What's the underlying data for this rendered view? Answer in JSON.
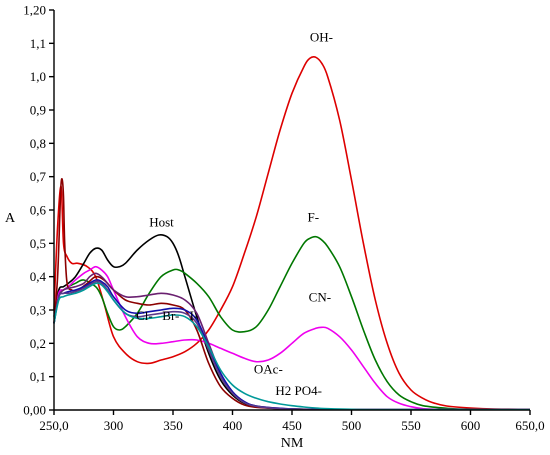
{
  "chart_data": {
    "type": "line",
    "title": "",
    "xlabel": "NM",
    "ylabel": "A",
    "xlim": [
      250,
      650
    ],
    "ylim": [
      0,
      1.2
    ],
    "grid": false,
    "x_tick_labels": [
      "250,0",
      "300",
      "350",
      "400",
      "450",
      "500",
      "550",
      "600",
      "650,0"
    ],
    "x_tick_values": [
      250,
      300,
      350,
      400,
      450,
      500,
      550,
      600,
      650
    ],
    "y_tick_labels": [
      "0,00",
      "0,1",
      "0,2",
      "0,3",
      "0,4",
      "0,5",
      "0,6",
      "0,7",
      "0,8",
      "0,9",
      "1,0",
      "1,1",
      "1,20"
    ],
    "y_tick_values": [
      0,
      0.1,
      0.2,
      0.3,
      0.4,
      0.5,
      0.6,
      0.7,
      0.8,
      0.9,
      1.0,
      1.1,
      1.2
    ],
    "annotations": [
      {
        "text": "OH-",
        "x": 465,
        "y": 1.105
      },
      {
        "text": "Host",
        "x": 330,
        "y": 0.55
      },
      {
        "text": "F-",
        "x": 463,
        "y": 0.565
      },
      {
        "text": "CN-",
        "x": 464,
        "y": 0.325
      },
      {
        "text": "Cl-",
        "x": 319,
        "y": 0.27
      },
      {
        "text": "Br-",
        "x": 341,
        "y": 0.27
      },
      {
        "text": "I-",
        "x": 364,
        "y": 0.27
      },
      {
        "text": "OAc-",
        "x": 418,
        "y": 0.11
      },
      {
        "text": "H2 PO4-",
        "x": 436,
        "y": 0.045
      }
    ],
    "series": [
      {
        "color": "#dd0000",
        "x": [
          250,
          253,
          256,
          258,
          261,
          265,
          270,
          278,
          285,
          292,
          300,
          310,
          320,
          330,
          340,
          350,
          360,
          370,
          380,
          390,
          400,
          410,
          420,
          430,
          440,
          450,
          460,
          465,
          470,
          475,
          480,
          490,
          500,
          510,
          520,
          530,
          540,
          550,
          560,
          570,
          580,
          600,
          620,
          650
        ],
        "y": [
          0.3,
          0.55,
          0.67,
          0.5,
          0.46,
          0.44,
          0.44,
          0.43,
          0.4,
          0.32,
          0.22,
          0.17,
          0.145,
          0.14,
          0.15,
          0.16,
          0.175,
          0.2,
          0.24,
          0.3,
          0.37,
          0.47,
          0.58,
          0.71,
          0.84,
          0.95,
          1.03,
          1.055,
          1.058,
          1.04,
          1.0,
          0.87,
          0.69,
          0.5,
          0.33,
          0.2,
          0.11,
          0.06,
          0.035,
          0.02,
          0.012,
          0.006,
          0.003,
          0.002
        ]
      },
      {
        "color": "#000000",
        "x": [
          250,
          254,
          258,
          262,
          268,
          275,
          280,
          285,
          290,
          295,
          300,
          305,
          310,
          320,
          330,
          338,
          345,
          350,
          355,
          360,
          370,
          380,
          390,
          400,
          410,
          420,
          430,
          440,
          450,
          470,
          500,
          550,
          650
        ],
        "y": [
          0.28,
          0.36,
          0.37,
          0.38,
          0.4,
          0.44,
          0.47,
          0.485,
          0.48,
          0.45,
          0.43,
          0.43,
          0.44,
          0.48,
          0.51,
          0.525,
          0.52,
          0.5,
          0.46,
          0.4,
          0.28,
          0.17,
          0.09,
          0.045,
          0.02,
          0.01,
          0.006,
          0.004,
          0.003,
          0.002,
          0.001,
          0.001,
          0.001
        ]
      },
      {
        "color": "#007700",
        "x": [
          250,
          254,
          258,
          262,
          268,
          275,
          285,
          290,
          295,
          300,
          305,
          310,
          320,
          330,
          340,
          350,
          355,
          360,
          370,
          380,
          390,
          400,
          410,
          420,
          430,
          440,
          450,
          460,
          465,
          470,
          475,
          480,
          490,
          500,
          510,
          520,
          530,
          540,
          550,
          560,
          580,
          600,
          650
        ],
        "y": [
          0.26,
          0.35,
          0.36,
          0.37,
          0.38,
          0.39,
          0.37,
          0.34,
          0.29,
          0.25,
          0.24,
          0.25,
          0.29,
          0.35,
          0.4,
          0.42,
          0.42,
          0.41,
          0.38,
          0.34,
          0.28,
          0.24,
          0.235,
          0.25,
          0.3,
          0.37,
          0.44,
          0.5,
          0.515,
          0.52,
          0.51,
          0.49,
          0.43,
          0.34,
          0.24,
          0.15,
          0.085,
          0.045,
          0.025,
          0.013,
          0.005,
          0.002,
          0.001
        ]
      },
      {
        "color": "#ee00ee",
        "x": [
          250,
          254,
          258,
          262,
          268,
          275,
          280,
          285,
          290,
          295,
          300,
          310,
          320,
          330,
          340,
          350,
          360,
          370,
          380,
          390,
          400,
          410,
          420,
          430,
          440,
          450,
          460,
          470,
          475,
          480,
          490,
          500,
          510,
          520,
          530,
          540,
          550,
          560,
          570,
          600,
          650
        ],
        "y": [
          0.26,
          0.35,
          0.36,
          0.37,
          0.39,
          0.41,
          0.42,
          0.43,
          0.42,
          0.4,
          0.36,
          0.28,
          0.22,
          0.2,
          0.2,
          0.205,
          0.21,
          0.21,
          0.2,
          0.185,
          0.17,
          0.155,
          0.145,
          0.15,
          0.17,
          0.2,
          0.23,
          0.245,
          0.248,
          0.245,
          0.22,
          0.18,
          0.13,
          0.08,
          0.04,
          0.02,
          0.01,
          0.004,
          0.002,
          0.001,
          0.001
        ]
      },
      {
        "color": "#8b0000",
        "x": [
          250,
          253,
          255,
          256,
          257,
          258,
          259,
          261,
          265,
          270,
          278,
          285,
          292,
          300,
          310,
          320,
          330,
          340,
          350,
          360,
          370,
          380,
          390,
          400,
          410,
          420,
          440,
          460,
          500,
          650
        ],
        "y": [
          0.26,
          0.4,
          0.6,
          0.68,
          0.69,
          0.64,
          0.5,
          0.38,
          0.36,
          0.36,
          0.38,
          0.4,
          0.39,
          0.36,
          0.33,
          0.32,
          0.315,
          0.32,
          0.315,
          0.3,
          0.24,
          0.14,
          0.07,
          0.035,
          0.015,
          0.008,
          0.004,
          0.002,
          0.001,
          0.001
        ]
      },
      {
        "color": "#6a2070",
        "x": [
          250,
          254,
          258,
          262,
          268,
          275,
          280,
          285,
          290,
          295,
          300,
          310,
          320,
          330,
          340,
          350,
          360,
          370,
          380,
          390,
          400,
          410,
          420,
          440,
          460,
          500,
          650
        ],
        "y": [
          0.26,
          0.34,
          0.36,
          0.365,
          0.37,
          0.38,
          0.4,
          0.41,
          0.4,
          0.38,
          0.36,
          0.34,
          0.34,
          0.345,
          0.35,
          0.345,
          0.33,
          0.29,
          0.2,
          0.11,
          0.055,
          0.025,
          0.012,
          0.005,
          0.002,
          0.001,
          0.001
        ]
      },
      {
        "color": "#1010aa",
        "x": [
          250,
          254,
          258,
          262,
          268,
          275,
          285,
          290,
          295,
          300,
          310,
          320,
          330,
          340,
          350,
          360,
          370,
          380,
          390,
          400,
          410,
          420,
          440,
          460,
          500,
          650
        ],
        "y": [
          0.26,
          0.34,
          0.35,
          0.355,
          0.36,
          0.37,
          0.39,
          0.385,
          0.37,
          0.34,
          0.3,
          0.29,
          0.295,
          0.3,
          0.305,
          0.3,
          0.27,
          0.19,
          0.11,
          0.055,
          0.025,
          0.012,
          0.005,
          0.002,
          0.001,
          0.001
        ]
      },
      {
        "color": "#5a3a8a",
        "x": [
          250,
          254,
          258,
          262,
          268,
          275,
          285,
          290,
          295,
          300,
          310,
          320,
          330,
          340,
          350,
          360,
          370,
          380,
          390,
          400,
          410,
          420,
          440,
          460,
          500,
          650
        ],
        "y": [
          0.26,
          0.34,
          0.35,
          0.35,
          0.355,
          0.365,
          0.385,
          0.38,
          0.36,
          0.33,
          0.29,
          0.28,
          0.285,
          0.29,
          0.295,
          0.29,
          0.26,
          0.18,
          0.1,
          0.05,
          0.022,
          0.011,
          0.004,
          0.002,
          0.001,
          0.001
        ]
      },
      {
        "color": "#009999",
        "x": [
          250,
          254,
          258,
          262,
          268,
          275,
          285,
          290,
          295,
          300,
          310,
          320,
          330,
          340,
          350,
          360,
          370,
          380,
          390,
          400,
          410,
          420,
          430,
          440,
          450,
          460,
          470,
          480,
          500,
          520,
          650
        ],
        "y": [
          0.26,
          0.33,
          0.34,
          0.345,
          0.35,
          0.36,
          0.38,
          0.375,
          0.355,
          0.33,
          0.29,
          0.275,
          0.275,
          0.28,
          0.285,
          0.28,
          0.25,
          0.19,
          0.12,
          0.075,
          0.05,
          0.035,
          0.025,
          0.018,
          0.013,
          0.009,
          0.006,
          0.004,
          0.002,
          0.001,
          0.001
        ]
      }
    ]
  }
}
